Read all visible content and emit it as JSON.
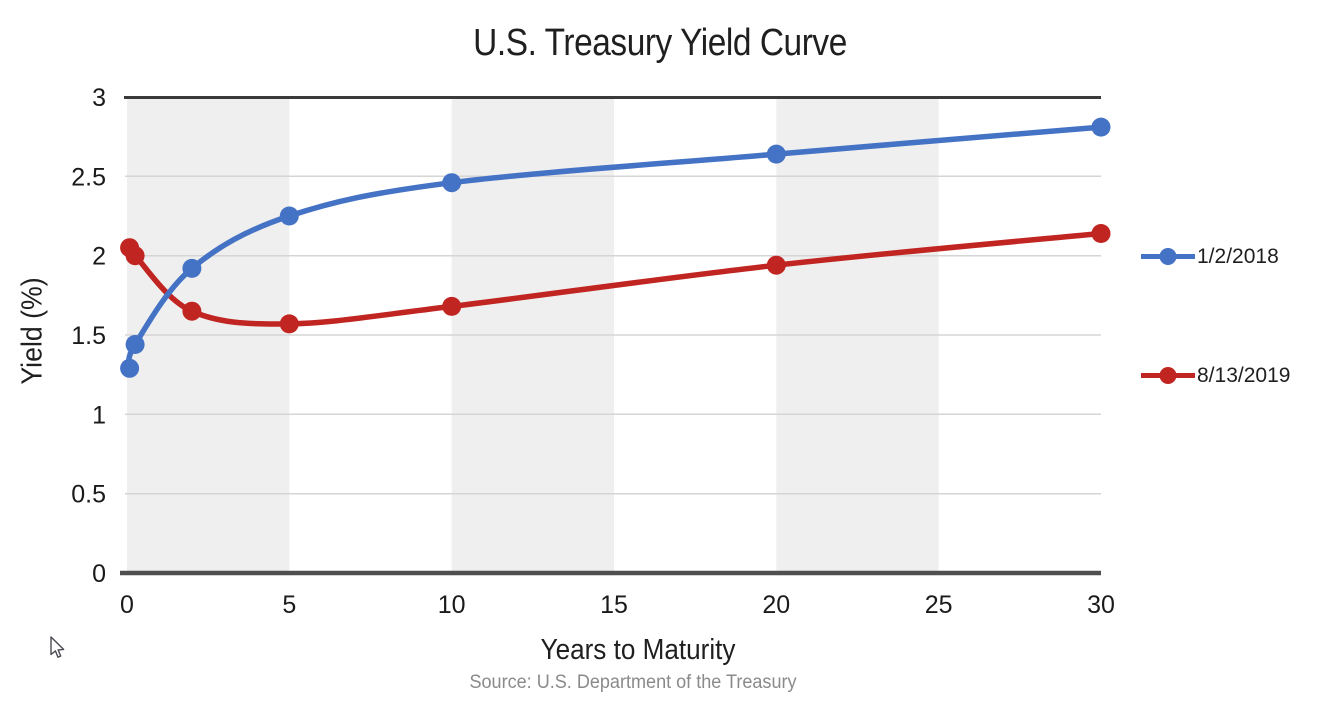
{
  "chart_data": {
    "type": "line",
    "title": "U.S. Treasury Yield Curve",
    "xlabel": "Years to Maturity",
    "ylabel": "Yield (%)",
    "source": "Source: U.S. Department of the Treasury",
    "xlim": [
      0,
      30
    ],
    "ylim": [
      0,
      3
    ],
    "x_ticks": [
      0,
      5,
      10,
      15,
      20,
      25,
      30
    ],
    "x_tick_labels": [
      "0",
      "5",
      "10",
      "15",
      "20",
      "25",
      "30"
    ],
    "y_ticks": [
      0,
      0.5,
      1,
      1.5,
      2,
      2.5,
      3
    ],
    "y_tick_labels": [
      "0",
      "0.5",
      "1",
      "1.5",
      "2",
      "2.5",
      "3"
    ],
    "grid": "horizontal gridlines, alternating vertical shaded bands",
    "shaded_x_bands": [
      [
        0,
        5
      ],
      [
        10,
        15
      ],
      [
        20,
        25
      ]
    ],
    "legend_position": "right",
    "line_style": "smooth with circular markers",
    "series": [
      {
        "name": "1/2/2018",
        "color": "#4472C4",
        "x": [
          0.08,
          0.25,
          2,
          5,
          10,
          20,
          30
        ],
        "y": [
          1.29,
          1.44,
          1.92,
          2.25,
          2.46,
          2.64,
          2.81
        ]
      },
      {
        "name": "8/13/2019",
        "color": "#C12521",
        "x": [
          0.08,
          0.25,
          2,
          5,
          10,
          20,
          30
        ],
        "y": [
          2.05,
          2.0,
          1.65,
          1.57,
          1.68,
          1.94,
          2.14
        ]
      }
    ],
    "style": {
      "band_fill": "#EFEFEF",
      "gridline": "#D5D5D5",
      "top_border": "#3A3A3A",
      "axis_line": "#4F4F4F",
      "text_color": "#1A1A1A",
      "source_color": "#8A8A8A"
    }
  }
}
